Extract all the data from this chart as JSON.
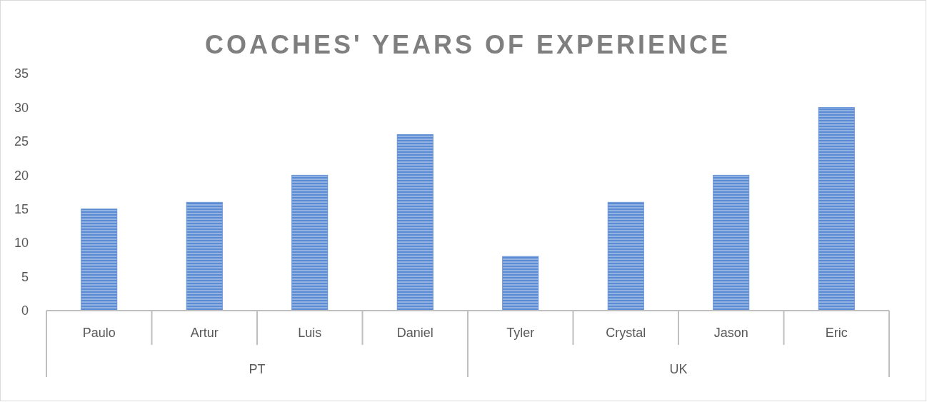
{
  "chart_data": {
    "type": "bar",
    "title": "COACHES' YEARS OF EXPERIENCE",
    "categories": [
      "Paulo",
      "Artur",
      "Luis",
      "Daniel",
      "Tyler",
      "Crystal",
      "Jason",
      "Eric"
    ],
    "values": [
      15,
      16,
      20,
      26,
      8,
      16,
      20,
      30
    ],
    "color": "#5b8bd3",
    "ylim": [
      0,
      35
    ],
    "yticks": [
      0,
      5,
      10,
      15,
      20,
      25,
      30,
      35
    ],
    "annotations": [
      "PT",
      "UK"
    ],
    "grid": false
  }
}
